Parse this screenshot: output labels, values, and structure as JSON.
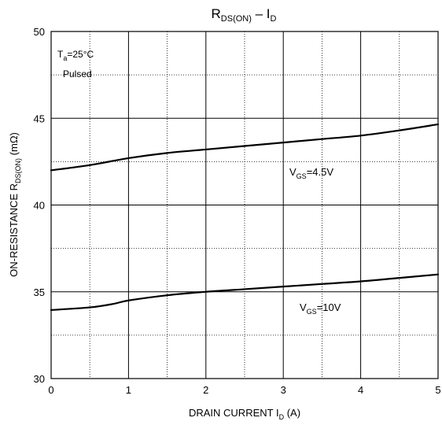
{
  "chart_data": {
    "type": "line",
    "title": {
      "main": "R",
      "sub": "DS(ON)",
      "dash": " – I",
      "sub2": "D"
    },
    "xlabel": {
      "main": "DRAIN CURRENT I",
      "sub": "D",
      "unit": " (A)"
    },
    "ylabel": {
      "main": "ON-RESISTANCE R",
      "sub": "DS(ON)",
      "unit": " (mΩ)"
    },
    "xlim": [
      0,
      5
    ],
    "ylim": [
      30,
      50
    ],
    "x_ticks": [
      "0",
      "1",
      "2",
      "3",
      "4",
      "5"
    ],
    "y_ticks": [
      "30",
      "35",
      "40",
      "45",
      "50"
    ],
    "x_tick_values": [
      0,
      1,
      2,
      3,
      4,
      5
    ],
    "y_tick_values": [
      30,
      35,
      40,
      45,
      50
    ],
    "minor_x": [
      0.5,
      1.5,
      2.5,
      3.5,
      4.5
    ],
    "minor_y": [
      32.5,
      37.5,
      42.5,
      47.5
    ],
    "grid": true,
    "annotation": {
      "ta": "T",
      "ta_sub": "a",
      "ta_val": "=25°C",
      "pulsed": "Pulsed"
    },
    "series": [
      {
        "name": "V_GS=4.5V",
        "label": {
          "main": "V",
          "sub": "GS",
          "val": "=4.5V"
        },
        "x": [
          0.0,
          0.5,
          1.0,
          1.5,
          2.0,
          2.5,
          3.0,
          3.5,
          4.0,
          4.5,
          5.0
        ],
        "y": [
          42.0,
          42.3,
          42.7,
          43.0,
          43.2,
          43.4,
          43.6,
          43.8,
          44.0,
          44.3,
          44.65
        ]
      },
      {
        "name": "V_GS=10V",
        "label": {
          "main": "V",
          "sub": "GS",
          "val": "=10V"
        },
        "x": [
          0.0,
          0.5,
          0.8,
          1.0,
          1.5,
          2.0,
          2.5,
          3.0,
          3.5,
          4.0,
          4.5,
          5.0
        ],
        "y": [
          33.95,
          34.1,
          34.3,
          34.5,
          34.8,
          35.0,
          35.15,
          35.3,
          35.45,
          35.6,
          35.8,
          36.0
        ]
      }
    ]
  }
}
